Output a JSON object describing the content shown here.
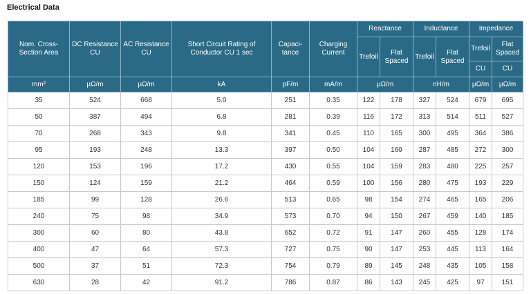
{
  "title": "Electrical Data",
  "headers": {
    "cross_section": "Nom. Cross-Section Area",
    "dc_resistance": "DC Resistance CU",
    "ac_resistance": "AC Resistance CU",
    "short_circuit": "Short Circuit Rating of Conductor CU 1 sec",
    "capacitance": "Capaci-tance",
    "charging_current": "Charging Current",
    "reactance": "Reactance",
    "inductance": "Inductance",
    "impedance": "Impedance",
    "trefoil": "Trefoil",
    "flat_spaced": "Flat Spaced",
    "cu": "CU"
  },
  "units": [
    "mm²",
    "µΩ/m",
    "µΩ/m",
    "kA",
    "pF/m",
    "mA/m",
    "µΩ/m",
    "nH/m",
    "µΩ/m",
    "µΩ/m"
  ],
  "rows": [
    [
      "35",
      "524",
      "668",
      "5.0",
      "251",
      "0.35",
      "122",
      "178",
      "327",
      "524",
      "679",
      "695"
    ],
    [
      "50",
      "387",
      "494",
      "6.8",
      "281",
      "0.39",
      "116",
      "172",
      "313",
      "514",
      "511",
      "527"
    ],
    [
      "70",
      "268",
      "343",
      "9.8",
      "341",
      "0.45",
      "110",
      "165",
      "300",
      "495",
      "364",
      "386"
    ],
    [
      "95",
      "193",
      "248",
      "13.3",
      "397",
      "0.50",
      "104",
      "160",
      "287",
      "485",
      "272",
      "300"
    ],
    [
      "120",
      "153",
      "196",
      "17.2",
      "430",
      "0.55",
      "104",
      "159",
      "283",
      "480",
      "225",
      "257"
    ],
    [
      "150",
      "124",
      "159",
      "21.2",
      "464",
      "0.59",
      "100",
      "156",
      "280",
      "475",
      "193",
      "229"
    ],
    [
      "185",
      "99",
      "128",
      "26.6",
      "513",
      "0.65",
      "98",
      "154",
      "274",
      "465",
      "165",
      "206"
    ],
    [
      "240",
      "75",
      "98",
      "34.9",
      "573",
      "0.70",
      "94",
      "150",
      "267",
      "459",
      "140",
      "185"
    ],
    [
      "300",
      "60",
      "80",
      "43.8",
      "652",
      "0.72",
      "91",
      "147",
      "260",
      "455",
      "128",
      "174"
    ],
    [
      "400",
      "47",
      "64",
      "57.3",
      "727",
      "0.75",
      "90",
      "147",
      "253",
      "445",
      "113",
      "164"
    ],
    [
      "500",
      "37",
      "51",
      "72.3",
      "754",
      "0.79",
      "89",
      "145",
      "248",
      "435",
      "105",
      "158"
    ],
    [
      "630",
      "28",
      "42",
      "91.2",
      "786",
      "0.87",
      "86",
      "143",
      "245",
      "425",
      "97",
      "151"
    ]
  ]
}
